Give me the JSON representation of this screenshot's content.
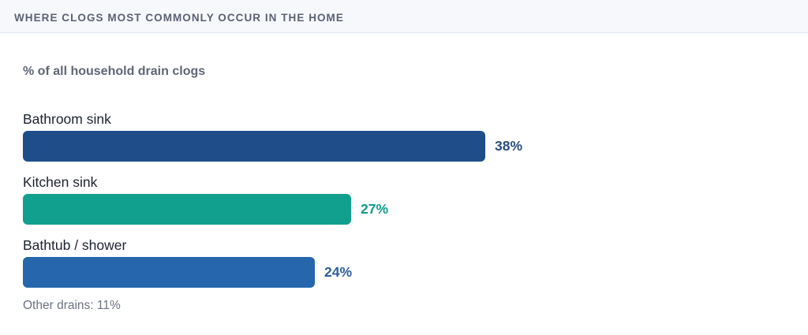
{
  "header": {
    "title": "WHERE CLOGS MOST COMMONLY OCCUR IN THE HOME"
  },
  "subtitle": "% of all household drain clogs",
  "footnote": "Other drains: 11%",
  "colors": {
    "bathroom_sink": "#1e4d8a",
    "kitchen_sink": "#12a08e",
    "bathtub_shower": "#2566ad",
    "header_bg": "#f7f8fc"
  },
  "bars": [
    {
      "label": "Bathroom sink",
      "value_label": "38%",
      "value": 38,
      "color": "#1e4d8a",
      "label_color": "#2a4f80"
    },
    {
      "label": "Kitchen sink",
      "value_label": "27%",
      "value": 27,
      "color": "#12a08e",
      "label_color": "#139b89"
    },
    {
      "label": "Bathtub / shower",
      "value_label": "24%",
      "value": 24,
      "color": "#2566ad",
      "label_color": "#2c5e9e"
    }
  ],
  "chart_data": {
    "type": "bar",
    "orientation": "horizontal",
    "title": "WHERE CLOGS MOST COMMONLY OCCUR IN THE HOME",
    "subtitle": "% of all household drain clogs",
    "categories": [
      "Bathroom sink",
      "Kitchen sink",
      "Bathtub / shower",
      "Other drains"
    ],
    "values": [
      38,
      27,
      24,
      11
    ],
    "unit": "%",
    "xlabel": "",
    "ylabel": "",
    "grid": false,
    "legend": "none",
    "annotations": [
      "Other drains: 11%"
    ]
  }
}
